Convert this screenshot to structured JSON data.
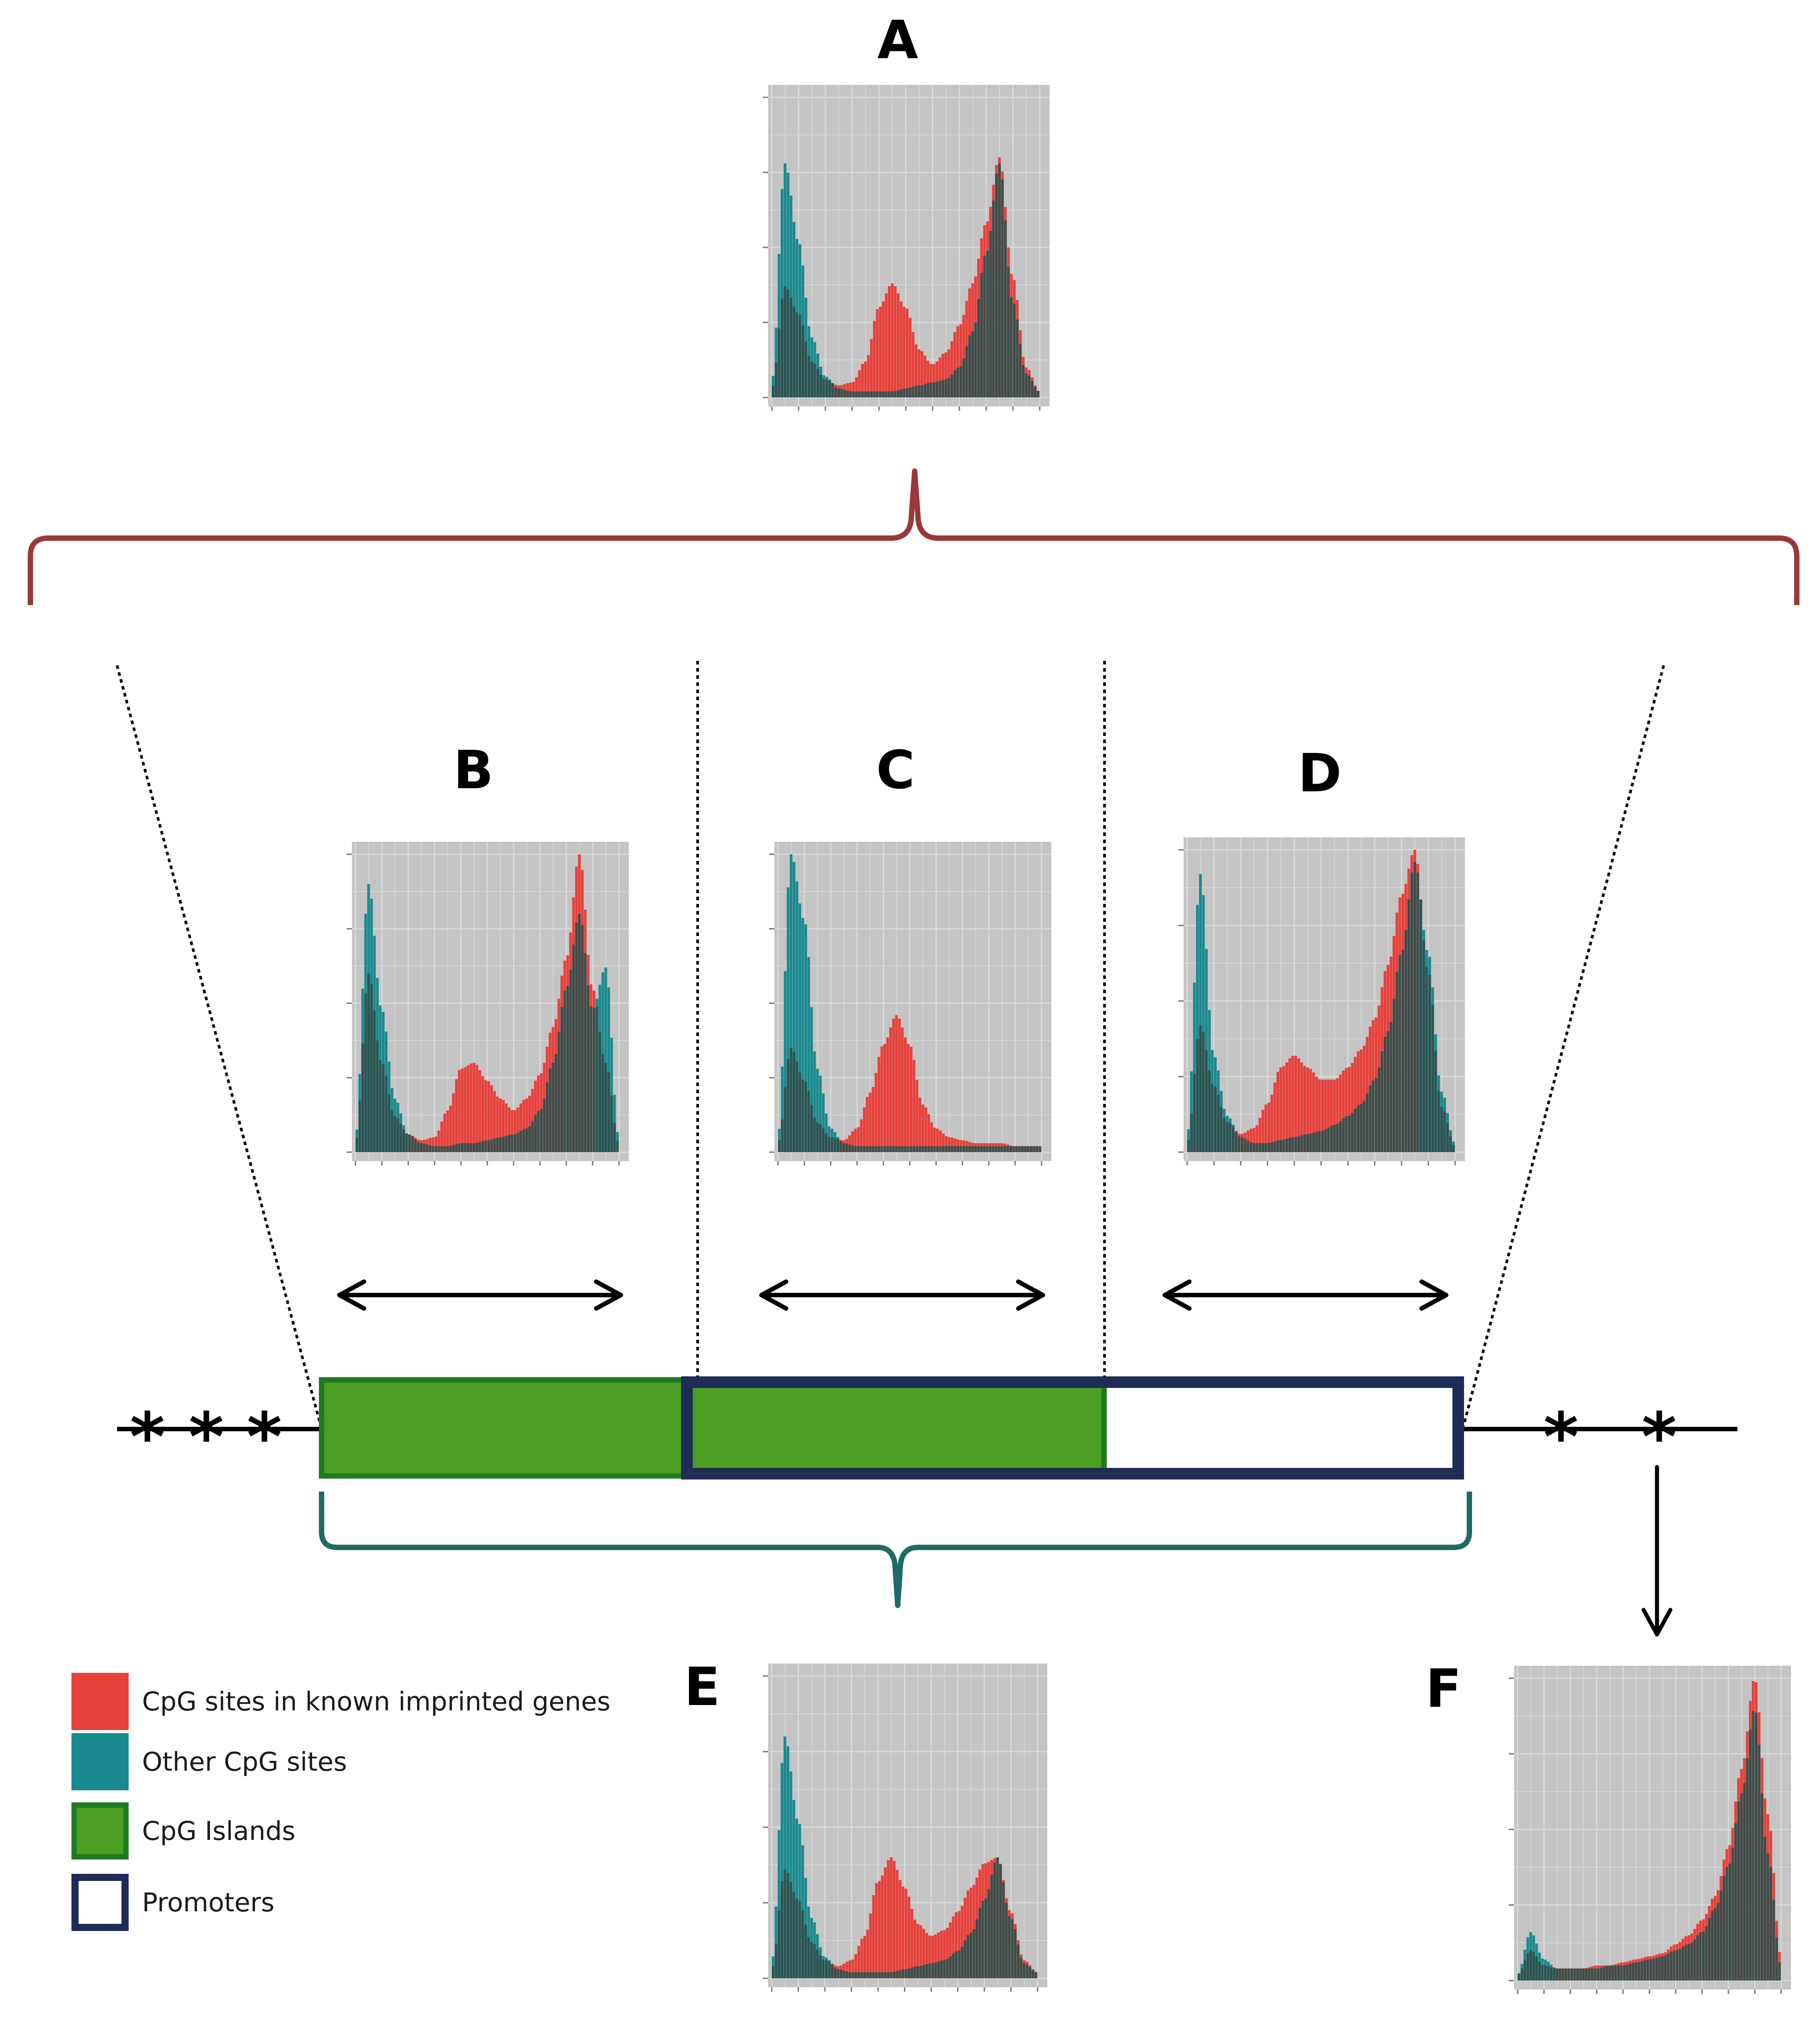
{
  "colors": {
    "imprinted": "#e8403a",
    "other": "#1a8a90",
    "overlap": "#2e4f4d",
    "island": "#4c9e23",
    "island_border": "#1f7a1f",
    "promoter_border": "#1e2d56",
    "bracket_top": "#9b3838",
    "bracket_bottom": "#1f6b66",
    "plot_bg": "#c4c4c4",
    "grid": "#d9d9d9"
  },
  "panels": {
    "A": {
      "label": "A"
    },
    "B": {
      "label": "B"
    },
    "C": {
      "label": "C"
    },
    "D": {
      "label": "D"
    },
    "E": {
      "label": "E"
    },
    "F": {
      "label": "F"
    }
  },
  "legend": {
    "items": [
      {
        "label": "CpG sites in known imprinted genes",
        "icon": "red-square"
      },
      {
        "label": "Other CpG sites",
        "icon": "teal-square"
      },
      {
        "label": "CpG Islands",
        "icon": "green-bordered-square"
      },
      {
        "label": "Promoters",
        "icon": "blue-bordered-square"
      }
    ]
  },
  "chart_data": [
    {
      "panel": "A",
      "type": "area",
      "x": [
        0,
        0.05,
        0.1,
        0.15,
        0.2,
        0.25,
        0.3,
        0.35,
        0.4,
        0.45,
        0.5,
        0.55,
        0.6,
        0.65,
        0.7,
        0.75,
        0.8,
        0.85,
        0.9,
        0.95,
        1.0
      ],
      "xlim": [
        0,
        1
      ],
      "ylim": [
        0,
        1
      ],
      "series": [
        {
          "name": "Other CpG sites",
          "values": [
            0.05,
            0.78,
            0.52,
            0.2,
            0.07,
            0.03,
            0.02,
            0.02,
            0.02,
            0.02,
            0.03,
            0.04,
            0.05,
            0.06,
            0.1,
            0.22,
            0.48,
            0.78,
            0.32,
            0.08,
            0.02
          ]
        },
        {
          "name": "CpG sites in known imprinted genes",
          "values": [
            0.03,
            0.37,
            0.28,
            0.12,
            0.06,
            0.04,
            0.05,
            0.12,
            0.3,
            0.38,
            0.3,
            0.16,
            0.11,
            0.15,
            0.24,
            0.38,
            0.58,
            0.8,
            0.4,
            0.1,
            0.02
          ]
        }
      ]
    },
    {
      "panel": "B",
      "type": "area",
      "x": [
        0,
        0.05,
        0.1,
        0.15,
        0.2,
        0.25,
        0.3,
        0.35,
        0.4,
        0.45,
        0.5,
        0.55,
        0.6,
        0.65,
        0.7,
        0.75,
        0.8,
        0.85,
        0.9,
        0.95,
        1.0
      ],
      "xlim": [
        0,
        1
      ],
      "ylim": [
        0,
        1
      ],
      "series": [
        {
          "name": "Other CpG sites",
          "values": [
            0.05,
            0.9,
            0.48,
            0.18,
            0.06,
            0.03,
            0.02,
            0.02,
            0.03,
            0.03,
            0.04,
            0.05,
            0.06,
            0.08,
            0.14,
            0.3,
            0.55,
            0.8,
            0.48,
            0.62,
            0.05
          ]
        },
        {
          "name": "CpG sites in known imprinted genes",
          "values": [
            0.03,
            0.6,
            0.3,
            0.12,
            0.06,
            0.04,
            0.05,
            0.14,
            0.28,
            0.3,
            0.24,
            0.18,
            0.14,
            0.18,
            0.26,
            0.42,
            0.65,
            1.0,
            0.55,
            0.3,
            0.03
          ]
        }
      ]
    },
    {
      "panel": "C",
      "type": "area",
      "x": [
        0,
        0.05,
        0.1,
        0.15,
        0.2,
        0.25,
        0.3,
        0.35,
        0.4,
        0.45,
        0.5,
        0.55,
        0.6,
        0.65,
        0.7,
        0.75,
        0.8,
        0.85,
        0.9,
        0.95,
        1.0
      ],
      "xlim": [
        0,
        1
      ],
      "ylim": [
        0,
        1
      ],
      "series": [
        {
          "name": "Other CpG sites",
          "values": [
            0.05,
            1.0,
            0.78,
            0.28,
            0.08,
            0.03,
            0.02,
            0.02,
            0.02,
            0.02,
            0.02,
            0.02,
            0.02,
            0.02,
            0.02,
            0.02,
            0.02,
            0.02,
            0.02,
            0.02,
            0.02
          ]
        },
        {
          "name": "CpG sites in known imprinted genes",
          "values": [
            0.03,
            0.35,
            0.24,
            0.1,
            0.05,
            0.04,
            0.08,
            0.2,
            0.36,
            0.46,
            0.36,
            0.16,
            0.08,
            0.05,
            0.04,
            0.03,
            0.03,
            0.03,
            0.02,
            0.02,
            0.02
          ]
        }
      ]
    },
    {
      "panel": "D",
      "type": "area",
      "x": [
        0,
        0.05,
        0.1,
        0.15,
        0.2,
        0.25,
        0.3,
        0.35,
        0.4,
        0.45,
        0.5,
        0.55,
        0.6,
        0.65,
        0.7,
        0.75,
        0.8,
        0.85,
        0.9,
        0.95,
        1.0
      ],
      "xlim": [
        0,
        1
      ],
      "ylim": [
        0,
        1
      ],
      "series": [
        {
          "name": "Other CpG sites",
          "values": [
            0.05,
            0.92,
            0.32,
            0.12,
            0.05,
            0.03,
            0.03,
            0.04,
            0.05,
            0.06,
            0.07,
            0.09,
            0.12,
            0.16,
            0.24,
            0.4,
            0.66,
            0.96,
            0.66,
            0.2,
            0.03
          ]
        },
        {
          "name": "CpG sites in known imprinted genes",
          "values": [
            0.03,
            0.42,
            0.22,
            0.1,
            0.06,
            0.08,
            0.16,
            0.28,
            0.32,
            0.28,
            0.24,
            0.24,
            0.28,
            0.34,
            0.44,
            0.62,
            0.85,
            1.0,
            0.6,
            0.15,
            0.02
          ]
        }
      ]
    },
    {
      "panel": "E",
      "type": "area",
      "x": [
        0,
        0.05,
        0.1,
        0.15,
        0.2,
        0.25,
        0.3,
        0.35,
        0.4,
        0.45,
        0.5,
        0.55,
        0.6,
        0.65,
        0.7,
        0.75,
        0.8,
        0.85,
        0.9,
        0.95,
        1.0
      ],
      "xlim": [
        0,
        1
      ],
      "ylim": [
        0,
        1
      ],
      "series": [
        {
          "name": "Other CpG sites",
          "values": [
            0.05,
            0.8,
            0.52,
            0.2,
            0.07,
            0.03,
            0.02,
            0.02,
            0.02,
            0.02,
            0.03,
            0.04,
            0.05,
            0.06,
            0.09,
            0.15,
            0.26,
            0.4,
            0.2,
            0.05,
            0.02
          ]
        },
        {
          "name": "CpG sites in known imprinted genes",
          "values": [
            0.03,
            0.36,
            0.26,
            0.12,
            0.06,
            0.04,
            0.06,
            0.14,
            0.32,
            0.4,
            0.3,
            0.18,
            0.14,
            0.16,
            0.22,
            0.3,
            0.38,
            0.4,
            0.22,
            0.06,
            0.02
          ]
        }
      ]
    },
    {
      "panel": "F",
      "type": "area",
      "x": [
        0,
        0.05,
        0.1,
        0.15,
        0.2,
        0.25,
        0.3,
        0.35,
        0.4,
        0.45,
        0.5,
        0.55,
        0.6,
        0.65,
        0.7,
        0.75,
        0.8,
        0.85,
        0.9,
        0.95,
        1.0
      ],
      "xlim": [
        0,
        1
      ],
      "ylim": [
        0,
        1
      ],
      "series": [
        {
          "name": "Other CpG sites",
          "values": [
            0.02,
            0.16,
            0.07,
            0.04,
            0.04,
            0.04,
            0.04,
            0.05,
            0.05,
            0.06,
            0.07,
            0.08,
            0.1,
            0.12,
            0.16,
            0.24,
            0.38,
            0.62,
            0.9,
            0.42,
            0.05
          ]
        },
        {
          "name": "CpG sites in known imprinted genes",
          "values": [
            0.02,
            0.1,
            0.05,
            0.04,
            0.04,
            0.04,
            0.05,
            0.05,
            0.06,
            0.07,
            0.08,
            0.09,
            0.12,
            0.15,
            0.2,
            0.28,
            0.44,
            0.7,
            1.0,
            0.55,
            0.08
          ]
        }
      ]
    }
  ]
}
